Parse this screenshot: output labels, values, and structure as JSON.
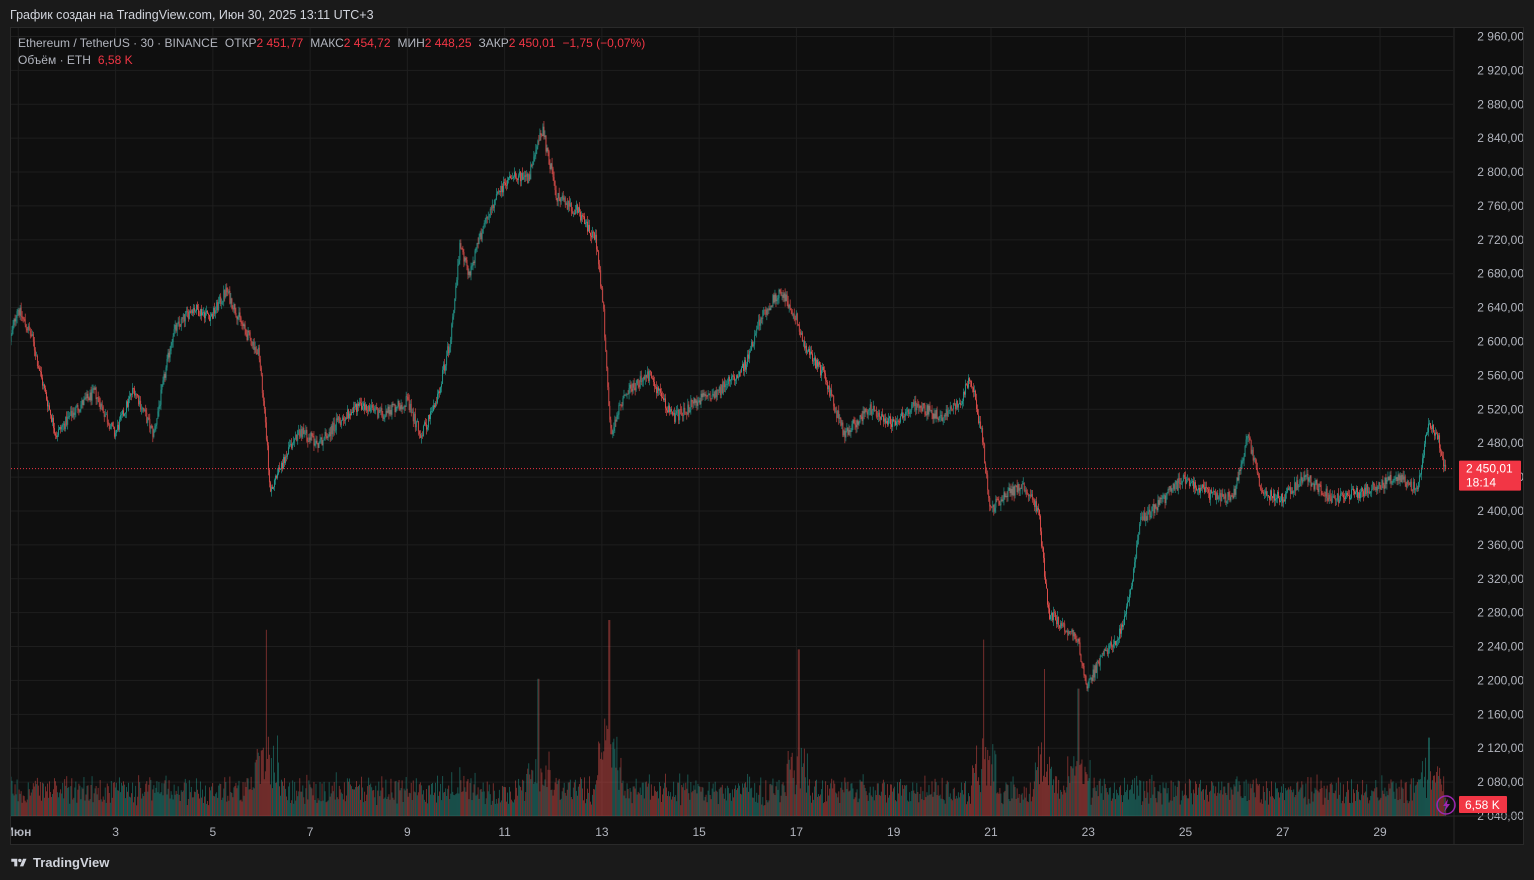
{
  "caption": "График создан на TradingView.com, Июн 30, 2025 13:11 UTC+3",
  "legend": {
    "symbol": "Ethereum / TetherUS · 30 · BINANCE",
    "open_label": "ОТКР",
    "open_value": "2 451,77",
    "high_label": "МАКС",
    "high_value": "2 454,72",
    "low_label": "МИН",
    "low_value": "2 448,25",
    "close_label": "ЗАКР",
    "close_value": "2 450,01",
    "change": "−1,75 (−0,07%)",
    "volume_label": "Объём · ETH",
    "volume_value": "6,58 K"
  },
  "price_tag": {
    "price": "2 450,01",
    "countdown": "18:14"
  },
  "volume_tag": "6,58 K",
  "footer": {
    "brand": "TradingView"
  },
  "colors": {
    "up": "#26a69a",
    "down": "#ef5350",
    "accent_red": "#f23645",
    "lightning_icon": "#9c27b0"
  },
  "chart_data": {
    "type": "candlestick",
    "title": "Ethereum / TetherUS · 30 · BINANCE",
    "interval": "30",
    "ylim": [
      2040,
      2970
    ],
    "y_ticks": [
      "2 960,00",
      "2 920,00",
      "2 880,00",
      "2 840,00",
      "2 800,00",
      "2 760,00",
      "2 720,00",
      "2 680,00",
      "2 640,00",
      "2 600,00",
      "2 560,00",
      "2 520,00",
      "2 480,00",
      "2 440,00",
      "2 400,00",
      "2 360,00",
      "2 320,00",
      "2 280,00",
      "2 240,00",
      "2 200,00",
      "2 160,00",
      "2 120,00",
      "2 080,00",
      "2 040,00"
    ],
    "x_tick_labels": [
      "Июн",
      "3",
      "5",
      "7",
      "9",
      "11",
      "13",
      "15",
      "17",
      "19",
      "21",
      "23",
      "25",
      "27",
      "29"
    ],
    "x_tick_days": [
      1,
      3,
      5,
      7,
      9,
      11,
      13,
      15,
      17,
      19,
      21,
      23,
      25,
      27,
      29
    ],
    "x_range_days": [
      0.85,
      30.5
    ],
    "grid": true,
    "last_price": 2450.01,
    "price_path": [
      {
        "day": 0.85,
        "price": 2600
      },
      {
        "day": 1.0,
        "price": 2640
      },
      {
        "day": 1.3,
        "price": 2605
      },
      {
        "day": 1.5,
        "price": 2555
      },
      {
        "day": 1.8,
        "price": 2490
      },
      {
        "day": 2.2,
        "price": 2520
      },
      {
        "day": 2.6,
        "price": 2540
      },
      {
        "day": 3.0,
        "price": 2490
      },
      {
        "day": 3.4,
        "price": 2545
      },
      {
        "day": 3.8,
        "price": 2490
      },
      {
        "day": 4.0,
        "price": 2550
      },
      {
        "day": 4.2,
        "price": 2610
      },
      {
        "day": 4.6,
        "price": 2640
      },
      {
        "day": 5.0,
        "price": 2630
      },
      {
        "day": 5.3,
        "price": 2660
      },
      {
        "day": 5.7,
        "price": 2610
      },
      {
        "day": 5.95,
        "price": 2590
      },
      {
        "day": 6.1,
        "price": 2510
      },
      {
        "day": 6.2,
        "price": 2420
      },
      {
        "day": 6.4,
        "price": 2450
      },
      {
        "day": 6.8,
        "price": 2495
      },
      {
        "day": 7.2,
        "price": 2480
      },
      {
        "day": 7.6,
        "price": 2505
      },
      {
        "day": 8.0,
        "price": 2525
      },
      {
        "day": 8.5,
        "price": 2515
      },
      {
        "day": 9.0,
        "price": 2530
      },
      {
        "day": 9.3,
        "price": 2490
      },
      {
        "day": 9.6,
        "price": 2525
      },
      {
        "day": 9.9,
        "price": 2600
      },
      {
        "day": 10.1,
        "price": 2710
      },
      {
        "day": 10.3,
        "price": 2680
      },
      {
        "day": 10.6,
        "price": 2740
      },
      {
        "day": 10.9,
        "price": 2775
      },
      {
        "day": 11.2,
        "price": 2800
      },
      {
        "day": 11.5,
        "price": 2790
      },
      {
        "day": 11.8,
        "price": 2850
      },
      {
        "day": 12.1,
        "price": 2770
      },
      {
        "day": 12.5,
        "price": 2755
      },
      {
        "day": 12.9,
        "price": 2720
      },
      {
        "day": 13.05,
        "price": 2640
      },
      {
        "day": 13.2,
        "price": 2490
      },
      {
        "day": 13.5,
        "price": 2540
      },
      {
        "day": 14.0,
        "price": 2560
      },
      {
        "day": 14.5,
        "price": 2510
      },
      {
        "day": 15.0,
        "price": 2530
      },
      {
        "day": 15.5,
        "price": 2545
      },
      {
        "day": 16.0,
        "price": 2575
      },
      {
        "day": 16.3,
        "price": 2630
      },
      {
        "day": 16.7,
        "price": 2660
      },
      {
        "day": 17.0,
        "price": 2630
      },
      {
        "day": 17.2,
        "price": 2590
      },
      {
        "day": 17.6,
        "price": 2560
      },
      {
        "day": 18.0,
        "price": 2490
      },
      {
        "day": 18.5,
        "price": 2520
      },
      {
        "day": 19.0,
        "price": 2505
      },
      {
        "day": 19.5,
        "price": 2525
      },
      {
        "day": 20.0,
        "price": 2510
      },
      {
        "day": 20.4,
        "price": 2530
      },
      {
        "day": 20.6,
        "price": 2560
      },
      {
        "day": 20.85,
        "price": 2485
      },
      {
        "day": 21.0,
        "price": 2400
      },
      {
        "day": 21.3,
        "price": 2420
      },
      {
        "day": 21.7,
        "price": 2430
      },
      {
        "day": 22.0,
        "price": 2400
      },
      {
        "day": 22.2,
        "price": 2280
      },
      {
        "day": 22.5,
        "price": 2265
      },
      {
        "day": 22.8,
        "price": 2250
      },
      {
        "day": 23.0,
        "price": 2190
      },
      {
        "day": 23.3,
        "price": 2230
      },
      {
        "day": 23.6,
        "price": 2245
      },
      {
        "day": 23.85,
        "price": 2290
      },
      {
        "day": 24.1,
        "price": 2390
      },
      {
        "day": 24.5,
        "price": 2410
      },
      {
        "day": 25.0,
        "price": 2440
      },
      {
        "day": 25.5,
        "price": 2420
      },
      {
        "day": 26.0,
        "price": 2415
      },
      {
        "day": 26.3,
        "price": 2490
      },
      {
        "day": 26.6,
        "price": 2420
      },
      {
        "day": 27.0,
        "price": 2415
      },
      {
        "day": 27.5,
        "price": 2440
      },
      {
        "day": 28.0,
        "price": 2415
      },
      {
        "day": 28.5,
        "price": 2420
      },
      {
        "day": 29.0,
        "price": 2430
      },
      {
        "day": 29.4,
        "price": 2440
      },
      {
        "day": 29.8,
        "price": 2425
      },
      {
        "day": 30.0,
        "price": 2500
      },
      {
        "day": 30.2,
        "price": 2490
      },
      {
        "day": 30.35,
        "price": 2450
      }
    ],
    "volume_spikes": [
      {
        "day": 6.1,
        "ratio": 0.95
      },
      {
        "day": 11.7,
        "ratio": 0.7
      },
      {
        "day": 13.15,
        "ratio": 1.0
      },
      {
        "day": 17.05,
        "ratio": 0.85
      },
      {
        "day": 20.85,
        "ratio": 0.9
      },
      {
        "day": 22.1,
        "ratio": 0.75
      },
      {
        "day": 22.8,
        "ratio": 0.65
      },
      {
        "day": 30.0,
        "ratio": 0.4
      }
    ]
  }
}
